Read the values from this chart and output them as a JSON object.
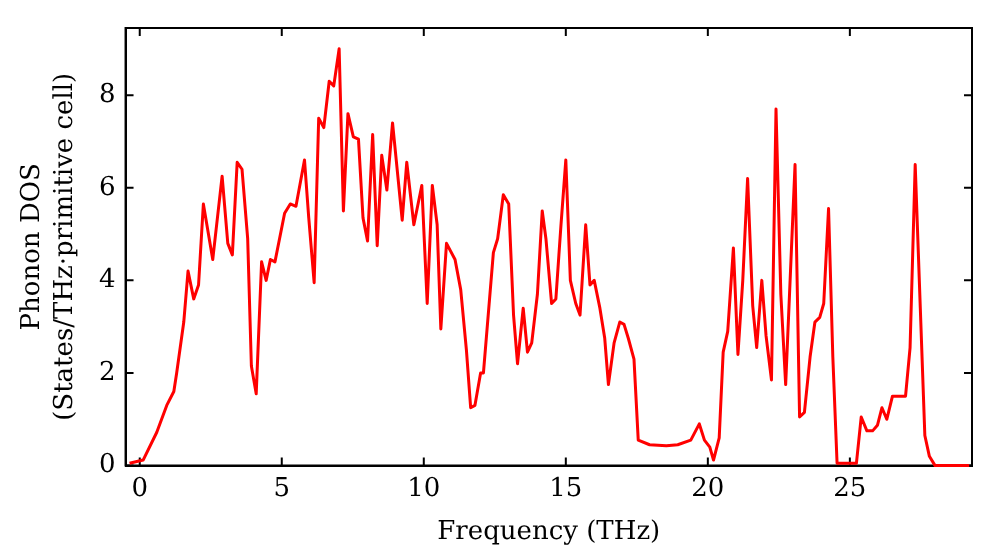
{
  "chart_data": {
    "type": "line",
    "xlabel": "Frequency (THz)",
    "ylabel": "Phonon DOS\n(States/THz·primitive cell)",
    "xlim": [
      -0.5,
      29.3
    ],
    "ylim": [
      0,
      9.45
    ],
    "xticks": [
      0,
      5,
      10,
      15,
      20,
      25
    ],
    "yticks": [
      0,
      2,
      4,
      6,
      8
    ],
    "grid": false,
    "legend": false,
    "marker": "none",
    "line_style": "solid",
    "series": [
      {
        "color": "#ff0000",
        "x": [
          -0.36,
          0.12,
          0.6,
          0.95,
          1.2,
          1.3,
          1.55,
          1.7,
          1.9,
          2.07,
          2.24,
          2.57,
          2.9,
          3.1,
          3.26,
          3.43,
          3.6,
          3.8,
          3.93,
          4.1,
          4.29,
          4.45,
          4.6,
          4.76,
          5.1,
          5.3,
          5.5,
          5.8,
          5.95,
          6.14,
          6.3,
          6.48,
          6.67,
          6.83,
          7.02,
          7.17,
          7.33,
          7.52,
          7.7,
          7.86,
          8.02,
          8.2,
          8.36,
          8.52,
          8.7,
          8.9,
          9.24,
          9.4,
          9.65,
          9.93,
          10.12,
          10.3,
          10.47,
          10.6,
          10.8,
          11.1,
          11.3,
          11.5,
          11.65,
          11.8,
          12.0,
          12.1,
          12.45,
          12.6,
          12.8,
          12.99,
          13.16,
          13.3,
          13.5,
          13.65,
          13.8,
          14.0,
          14.17,
          14.3,
          14.5,
          14.65,
          14.83,
          15.0,
          15.16,
          15.35,
          15.5,
          15.7,
          15.85,
          16.0,
          16.2,
          16.37,
          16.5,
          16.7,
          16.9,
          17.05,
          17.2,
          17.4,
          17.55,
          17.95,
          18.54,
          18.94,
          19.4,
          19.7,
          19.88,
          20.07,
          20.2,
          20.4,
          20.54,
          20.7,
          20.9,
          21.06,
          21.23,
          21.4,
          21.58,
          21.72,
          21.9,
          22.05,
          22.24,
          22.4,
          22.57,
          22.74,
          23.07,
          23.23,
          23.4,
          23.6,
          23.77,
          23.94,
          24.08,
          24.25,
          24.4,
          24.55,
          25.23,
          25.4,
          25.6,
          25.8,
          25.97,
          26.13,
          26.3,
          26.5,
          26.96,
          27.12,
          27.3,
          27.48,
          27.64,
          27.8,
          28.0,
          29.2
        ],
        "values": [
          0.05,
          0.12,
          0.72,
          1.3,
          1.6,
          2.0,
          3.1,
          4.2,
          3.6,
          3.9,
          5.65,
          4.45,
          6.25,
          4.8,
          4.55,
          6.55,
          6.4,
          4.9,
          2.15,
          1.55,
          4.4,
          4.0,
          4.45,
          4.4,
          5.45,
          5.65,
          5.6,
          6.6,
          5.35,
          3.95,
          7.5,
          7.3,
          8.3,
          8.2,
          9.0,
          5.5,
          7.6,
          7.1,
          7.05,
          5.35,
          4.85,
          7.15,
          4.75,
          6.7,
          5.95,
          7.4,
          5.3,
          6.55,
          5.2,
          6.05,
          3.5,
          6.05,
          5.2,
          2.95,
          4.8,
          4.45,
          3.8,
          2.5,
          1.25,
          1.3,
          2.0,
          2.0,
          4.6,
          4.9,
          5.85,
          5.65,
          3.25,
          2.2,
          3.4,
          2.45,
          2.65,
          3.7,
          5.5,
          4.9,
          3.5,
          3.6,
          5.2,
          6.6,
          4.0,
          3.5,
          3.25,
          5.2,
          3.9,
          4.0,
          3.4,
          2.75,
          1.75,
          2.65,
          3.1,
          3.05,
          2.75,
          2.3,
          0.55,
          0.45,
          0.43,
          0.45,
          0.55,
          0.9,
          0.55,
          0.4,
          0.12,
          0.6,
          2.45,
          2.9,
          4.7,
          2.4,
          4.0,
          6.2,
          3.45,
          2.55,
          4.0,
          2.8,
          1.85,
          7.7,
          3.7,
          1.75,
          6.5,
          1.05,
          1.15,
          2.35,
          3.1,
          3.2,
          3.5,
          5.55,
          2.35,
          0.05,
          0.05,
          1.05,
          0.75,
          0.75,
          0.87,
          1.25,
          1.0,
          1.5,
          1.5,
          2.55,
          6.5,
          3.4,
          0.65,
          0.2,
          0.0,
          0.0
        ]
      }
    ]
  }
}
